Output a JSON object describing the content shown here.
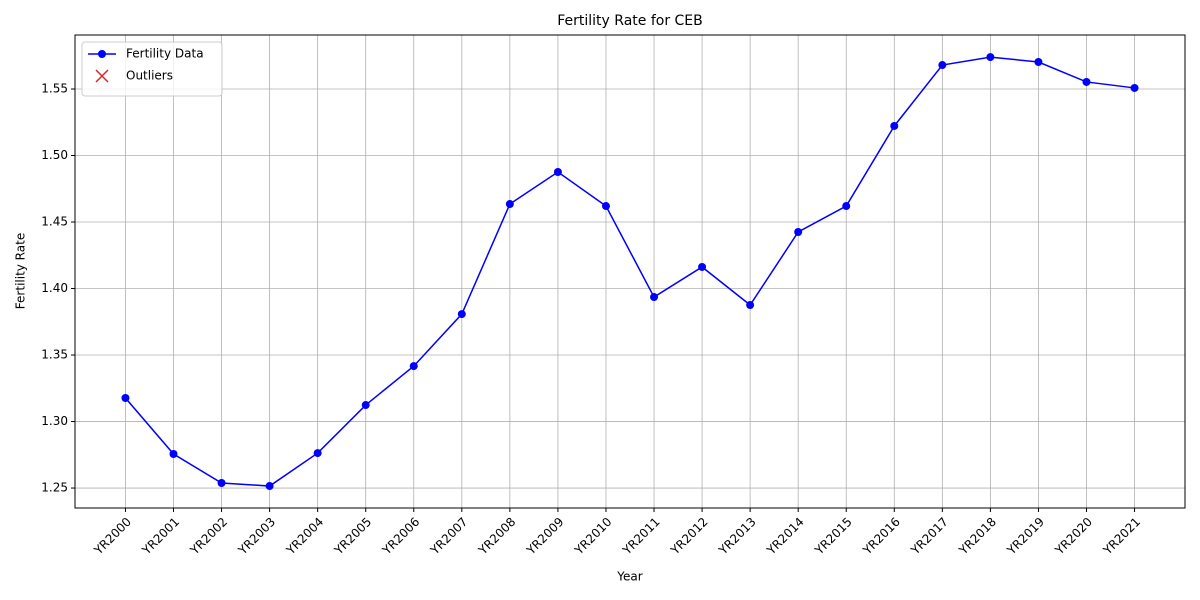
{
  "chart_data": {
    "type": "line",
    "title": "Fertility Rate for CEB",
    "x_label": "Year",
    "y_label": "Fertility Rate",
    "categories": [
      "YR2000",
      "YR2001",
      "YR2002",
      "YR2003",
      "YR2004",
      "YR2005",
      "YR2006",
      "YR2007",
      "YR2008",
      "YR2009",
      "YR2010",
      "YR2011",
      "YR2012",
      "YR2013",
      "YR2014",
      "YR2015",
      "YR2016",
      "YR2017",
      "YR2018",
      "YR2019",
      "YR2020",
      "YR2021"
    ],
    "series": [
      {
        "name": "Fertility Data",
        "color": "#0000ff",
        "marker": "circle",
        "values": [
          1.3177,
          1.2756,
          1.2538,
          1.2515,
          1.2763,
          1.3124,
          1.3417,
          1.3808,
          1.4635,
          1.4876,
          1.462,
          1.3936,
          1.4162,
          1.3876,
          1.4425,
          1.462,
          1.5222,
          1.568,
          1.574,
          1.5703,
          1.5553,
          1.5508
        ]
      },
      {
        "name": "Outliers",
        "color": "#d62728",
        "marker": "x",
        "values": [
          null,
          null,
          null,
          null,
          null,
          null,
          null,
          null,
          null,
          null,
          null,
          null,
          null,
          null,
          null,
          null,
          null,
          null,
          null,
          null,
          null,
          null
        ]
      }
    ],
    "ylim": [
      1.235,
      1.5906
    ],
    "yticks": [
      {
        "value": 1.25,
        "label": "1.25"
      },
      {
        "value": 1.3,
        "label": "1.30"
      },
      {
        "value": 1.35,
        "label": "1.35"
      },
      {
        "value": 1.4,
        "label": "1.40"
      },
      {
        "value": 1.45,
        "label": "1.45"
      },
      {
        "value": 1.5,
        "label": "1.50"
      },
      {
        "value": 1.55,
        "label": "1.55"
      }
    ],
    "grid": true,
    "legend": "upper left"
  }
}
